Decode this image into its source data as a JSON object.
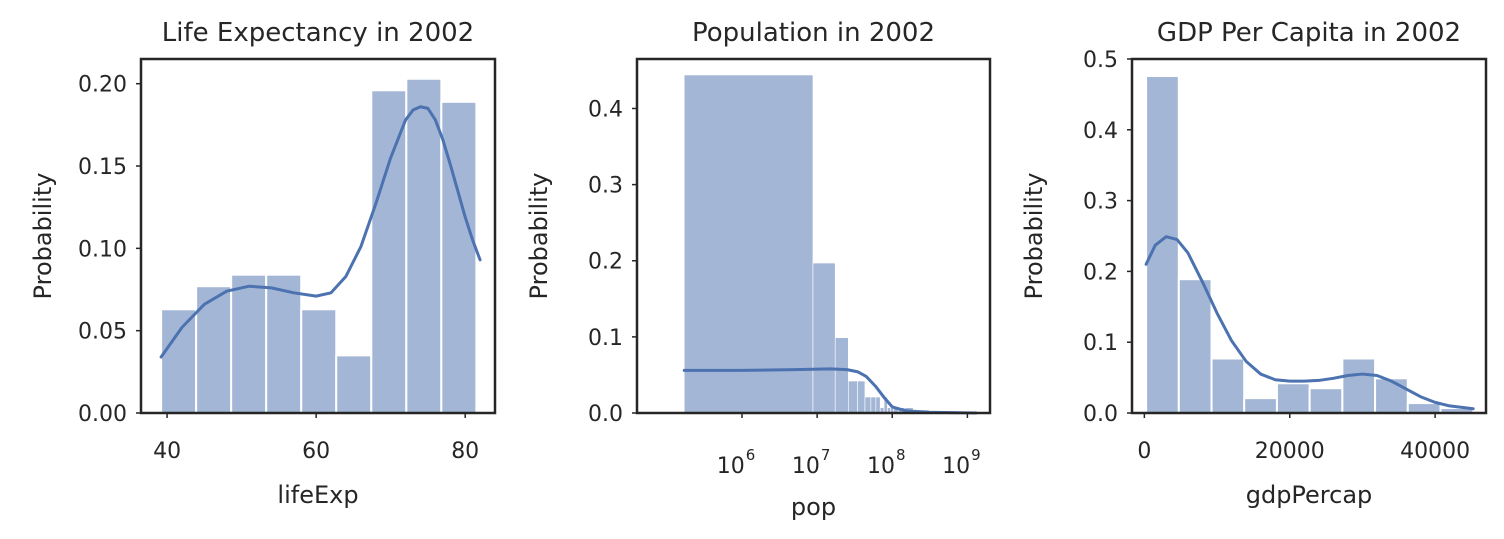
{
  "chart_data": [
    {
      "type": "histogram",
      "title": "Life Expectancy in 2002",
      "xlabel": "lifeExp",
      "ylabel": "Probability",
      "xlim": [
        36.5,
        84
      ],
      "ylim": [
        0,
        0.215
      ],
      "xticks": [
        40,
        60,
        80
      ],
      "yticks": [
        0.0,
        0.05,
        0.1,
        0.15,
        0.2
      ],
      "ytick_labels": [
        "0.00",
        "0.05",
        "0.10",
        "0.15",
        "0.20"
      ],
      "bins": [
        {
          "x0": 39.2,
          "x1": 43.9,
          "value": 0.063
        },
        {
          "x0": 43.9,
          "x1": 48.6,
          "value": 0.077
        },
        {
          "x0": 48.6,
          "x1": 53.3,
          "value": 0.084
        },
        {
          "x0": 53.3,
          "x1": 58.0,
          "value": 0.084
        },
        {
          "x0": 58.0,
          "x1": 62.7,
          "value": 0.063
        },
        {
          "x0": 62.7,
          "x1": 67.4,
          "value": 0.035
        },
        {
          "x0": 67.4,
          "x1": 72.1,
          "value": 0.196
        },
        {
          "x0": 72.1,
          "x1": 76.8,
          "value": 0.203
        },
        {
          "x0": 76.8,
          "x1": 81.5,
          "value": 0.189
        }
      ],
      "kde": {
        "x": [
          39.2,
          42,
          45,
          48,
          51,
          54,
          57,
          60,
          62,
          64,
          66,
          68,
          70,
          72,
          73,
          74,
          75,
          76,
          77,
          78,
          79,
          80,
          81,
          82
        ],
        "y": [
          0.034,
          0.052,
          0.066,
          0.074,
          0.077,
          0.076,
          0.073,
          0.071,
          0.073,
          0.083,
          0.101,
          0.127,
          0.155,
          0.178,
          0.184,
          0.186,
          0.185,
          0.178,
          0.166,
          0.151,
          0.135,
          0.119,
          0.105,
          0.093
        ]
      },
      "grid": false
    },
    {
      "type": "histogram",
      "title": "Population in 2002",
      "xlabel": "pop",
      "ylabel": "Probability",
      "xscale": "log",
      "xlim": [
        40000,
        2000000000
      ],
      "ylim": [
        0,
        0.465
      ],
      "xticks": [
        1000000,
        10000000,
        100000000,
        1000000000
      ],
      "xtick_labels": [
        {
          "base": "10",
          "exp": "6"
        },
        {
          "base": "10",
          "exp": "7"
        },
        {
          "base": "10",
          "exp": "8"
        },
        {
          "base": "10",
          "exp": "9"
        }
      ],
      "yticks": [
        0.0,
        0.1,
        0.2,
        0.3,
        0.4
      ],
      "ytick_labels": [
        "0.0",
        "0.1",
        "0.2",
        "0.3",
        "0.4"
      ],
      "bins": [
        {
          "x0": 170000,
          "x1": 8800000,
          "value": 0.444
        },
        {
          "x0": 8800000,
          "x1": 17400000,
          "value": 0.197
        },
        {
          "x0": 17400000,
          "x1": 26000000,
          "value": 0.099
        },
        {
          "x0": 26000000,
          "x1": 34600000,
          "value": 0.042
        },
        {
          "x0": 34600000,
          "x1": 43300000,
          "value": 0.042
        },
        {
          "x0": 43300000,
          "x1": 51900000,
          "value": 0.021
        },
        {
          "x0": 51900000,
          "x1": 60500000,
          "value": 0.021
        },
        {
          "x0": 60500000,
          "x1": 69100000,
          "value": 0.021
        },
        {
          "x0": 69100000,
          "x1": 77700000,
          "value": 0.007
        },
        {
          "x0": 77700000,
          "x1": 86300000,
          "value": 0.021
        },
        {
          "x0": 86300000,
          "x1": 94900000,
          "value": 0.007
        },
        {
          "x0": 94900000,
          "x1": 103600000,
          "value": 0.007
        },
        {
          "x0": 103600000,
          "x1": 120800000,
          "value": 0.007
        },
        {
          "x0": 120800000,
          "x1": 146700000,
          "value": 0.007
        },
        {
          "x0": 146700000,
          "x1": 189800000,
          "value": 0.007
        },
        {
          "x0": 189800000,
          "x1": 250000000,
          "value": 0.004
        },
        {
          "x0": 250000000,
          "x1": 310000000,
          "value": 0.004
        },
        {
          "x0": 1020000000,
          "x1": 1030000000,
          "value": 0.004
        },
        {
          "x0": 1270000000,
          "x1": 1280000000,
          "value": 0.004
        }
      ],
      "kde": {
        "x": [
          170000,
          1000000,
          5000000,
          15000000,
          25000000,
          35000000,
          45000000,
          60000000,
          80000000,
          100000000,
          150000000,
          300000000,
          1300000000
        ],
        "y": [
          0.056,
          0.056,
          0.057,
          0.058,
          0.057,
          0.054,
          0.048,
          0.035,
          0.019,
          0.008,
          0.003,
          0.001,
          0.0
        ]
      },
      "grid": false
    },
    {
      "type": "histogram",
      "title": "GDP Per Capita in 2002",
      "xlabel": "gdpPercap",
      "ylabel": "Probability",
      "xlim": [
        -1700,
        47000
      ],
      "ylim": [
        0,
        0.5
      ],
      "xticks": [
        0,
        20000,
        40000
      ],
      "yticks": [
        0.0,
        0.1,
        0.2,
        0.3,
        0.4,
        0.5
      ],
      "ytick_labels": [
        "0.0",
        "0.1",
        "0.2",
        "0.3",
        "0.4",
        "0.5"
      ],
      "bins": [
        {
          "x0": 240,
          "x1": 4740,
          "value": 0.476
        },
        {
          "x0": 4740,
          "x1": 9240,
          "value": 0.189
        },
        {
          "x0": 9240,
          "x1": 13740,
          "value": 0.077
        },
        {
          "x0": 13740,
          "x1": 18240,
          "value": 0.021
        },
        {
          "x0": 18240,
          "x1": 22740,
          "value": 0.042
        },
        {
          "x0": 22740,
          "x1": 27240,
          "value": 0.035
        },
        {
          "x0": 27240,
          "x1": 31740,
          "value": 0.077
        },
        {
          "x0": 31740,
          "x1": 36240,
          "value": 0.049
        },
        {
          "x0": 36240,
          "x1": 40740,
          "value": 0.014
        },
        {
          "x0": 40740,
          "x1": 45240,
          "value": 0.007
        }
      ],
      "kde": {
        "x": [
          240,
          1500,
          3000,
          4500,
          6000,
          8000,
          10000,
          12000,
          14000,
          16000,
          18000,
          20000,
          22000,
          24000,
          26000,
          28000,
          30000,
          32000,
          34000,
          36000,
          38000,
          40000,
          42000,
          45240
        ],
        "y": [
          0.21,
          0.237,
          0.249,
          0.245,
          0.226,
          0.185,
          0.141,
          0.102,
          0.073,
          0.055,
          0.047,
          0.045,
          0.045,
          0.046,
          0.049,
          0.053,
          0.055,
          0.053,
          0.045,
          0.034,
          0.023,
          0.015,
          0.01,
          0.006
        ]
      },
      "grid": false
    }
  ]
}
